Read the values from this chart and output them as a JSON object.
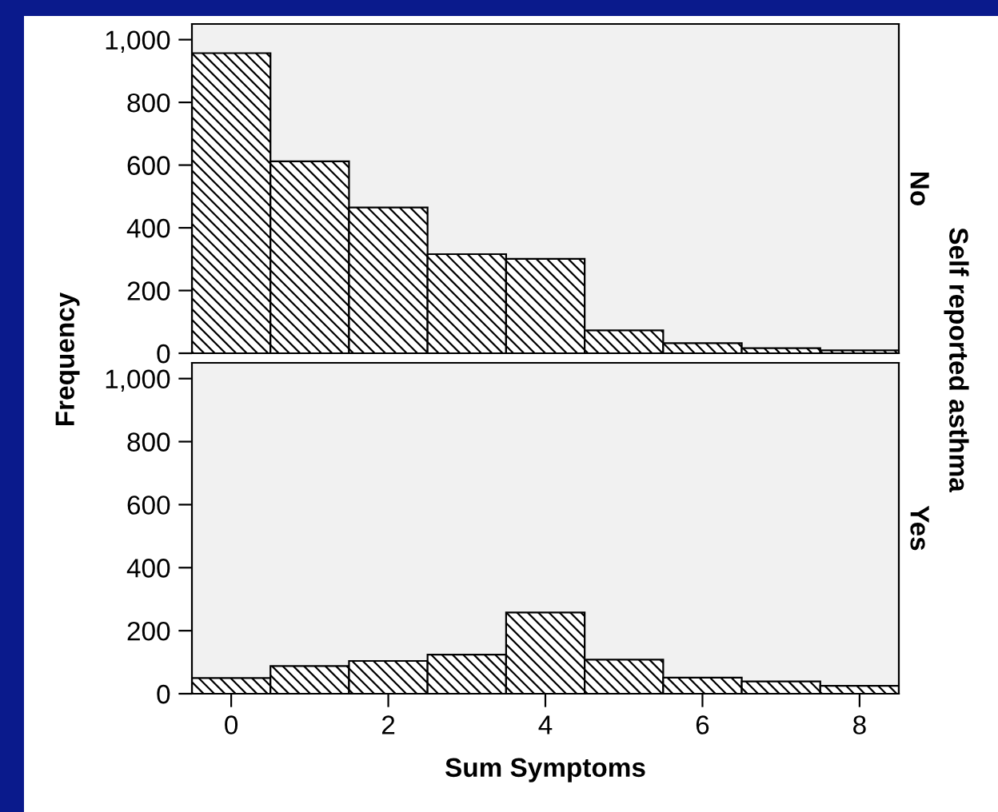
{
  "chart_data": [
    {
      "type": "histogram",
      "y2label": "No",
      "ylabel": "Frequency",
      "annotations": [
        "Self reported asthma"
      ],
      "bins": [
        -0.5,
        0.5,
        1.5,
        2.5,
        3.5,
        4.5,
        5.5,
        6.5,
        7.5,
        8.5
      ],
      "values": [
        957,
        612,
        465,
        316,
        301,
        73,
        32,
        16,
        9
      ],
      "color": "#000000",
      "xlim": [
        -0.5,
        8.5
      ],
      "ylim": [
        0,
        1050
      ],
      "yticks": [
        0,
        200,
        400,
        600,
        800,
        {
          "value": 1000,
          "label": "1,000"
        }
      ],
      "tick_labels": "y",
      "grid": false
    },
    {
      "type": "histogram",
      "y2label": "Yes",
      "xlabel": "Sum Symptoms",
      "bins": [
        -0.5,
        0.5,
        1.5,
        2.5,
        3.5,
        4.5,
        5.5,
        6.5,
        7.5,
        8.5
      ],
      "values": [
        50,
        88,
        104,
        124,
        258,
        108,
        51,
        39,
        25
      ],
      "color": "#000000",
      "xlim": [
        -0.5,
        8.5
      ],
      "ylim": [
        0,
        1050
      ],
      "xticks": [
        0,
        2,
        4,
        6,
        8
      ],
      "yticks": [
        0,
        200,
        400,
        600,
        800,
        {
          "value": 1000,
          "label": "1,000"
        }
      ],
      "grid": false
    }
  ]
}
